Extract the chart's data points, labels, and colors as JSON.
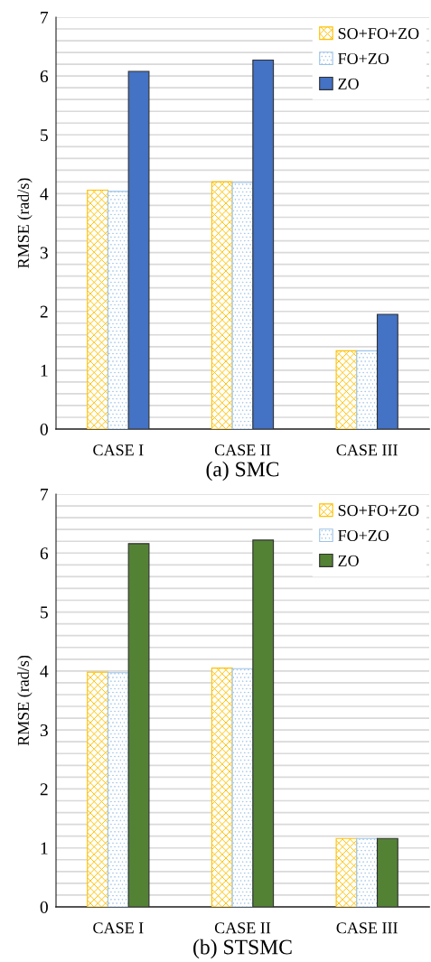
{
  "chart_data": [
    {
      "type": "bar",
      "title": "(a) SMC",
      "ylabel": "RMSE (rad/s)",
      "categories": [
        "CASE I",
        "CASE II",
        "CASE III"
      ],
      "series": [
        {
          "name": "SO+FO+ZO",
          "color": "#ffc000",
          "values": [
            4.06,
            4.2,
            1.33
          ]
        },
        {
          "name": "FO+ZO",
          "color": "#9dc3e6",
          "values": [
            4.04,
            4.19,
            1.33
          ]
        },
        {
          "name": "ZO",
          "color": "#4472c4",
          "values": [
            6.08,
            6.27,
            1.95
          ]
        }
      ],
      "ylim": [
        0,
        7
      ],
      "yticks": [
        0,
        {
          "value": 0.2,
          "label": null
        },
        {
          "value": 0.4,
          "label": null
        },
        {
          "value": 0.6,
          "label": null
        },
        {
          "value": 0.8,
          "label": null
        },
        1,
        {
          "value": 1.2,
          "label": null
        },
        {
          "value": 1.4,
          "label": null
        },
        {
          "value": 1.6,
          "label": null
        },
        {
          "value": 1.8,
          "label": null
        },
        2,
        {
          "value": 2.2,
          "label": null
        },
        {
          "value": 2.4,
          "label": null
        },
        {
          "value": 2.6,
          "label": null
        },
        {
          "value": 2.8,
          "label": null
        },
        3,
        {
          "value": 3.2,
          "label": null
        },
        {
          "value": 3.4,
          "label": null
        },
        {
          "value": 3.6,
          "label": null
        },
        {
          "value": 3.8,
          "label": null
        },
        4,
        {
          "value": 4.2,
          "label": null
        },
        {
          "value": 4.4,
          "label": null
        },
        {
          "value": 4.6,
          "label": null
        },
        {
          "value": 4.8,
          "label": null
        },
        5,
        {
          "value": 5.2,
          "label": null
        },
        {
          "value": 5.4,
          "label": null
        },
        {
          "value": 5.6,
          "label": null
        },
        {
          "value": 5.8,
          "label": null
        },
        6,
        {
          "value": 6.2,
          "label": null
        },
        {
          "value": 6.4,
          "label": null
        },
        {
          "value": 6.6,
          "label": null
        },
        {
          "value": 6.8,
          "label": null
        },
        7
      ],
      "grid": "y",
      "legend": "top right"
    },
    {
      "type": "bar",
      "title": "(b) STSMC",
      "ylabel": "RMSE (rad/s)",
      "categories": [
        "CASE I",
        "CASE II",
        "CASE III"
      ],
      "series": [
        {
          "name": "SO+FO+ZO",
          "color": "#ffc000",
          "values": [
            3.98,
            4.05,
            1.16
          ]
        },
        {
          "name": "FO+ZO",
          "color": "#9dc3e6",
          "values": [
            3.97,
            4.04,
            1.16
          ]
        },
        {
          "name": "ZO",
          "color": "#548235",
          "values": [
            6.16,
            6.22,
            1.16
          ]
        }
      ],
      "ylim": [
        0,
        7
      ],
      "yticks": [
        0,
        {
          "value": 0.2,
          "label": null
        },
        {
          "value": 0.4,
          "label": null
        },
        {
          "value": 0.6,
          "label": null
        },
        {
          "value": 0.8,
          "label": null
        },
        1,
        {
          "value": 1.2,
          "label": null
        },
        {
          "value": 1.4,
          "label": null
        },
        {
          "value": 1.6,
          "label": null
        },
        {
          "value": 1.8,
          "label": null
        },
        2,
        {
          "value": 2.2,
          "label": null
        },
        {
          "value": 2.4,
          "label": null
        },
        {
          "value": 2.6,
          "label": null
        },
        {
          "value": 2.8,
          "label": null
        },
        3,
        {
          "value": 3.2,
          "label": null
        },
        {
          "value": 3.4,
          "label": null
        },
        {
          "value": 3.6,
          "label": null
        },
        {
          "value": 3.8,
          "label": null
        },
        4,
        {
          "value": 4.2,
          "label": null
        },
        {
          "value": 4.4,
          "label": null
        },
        {
          "value": 4.6,
          "label": null
        },
        {
          "value": 4.8,
          "label": null
        },
        5,
        {
          "value": 5.2,
          "label": null
        },
        {
          "value": 5.4,
          "label": null
        },
        {
          "value": 5.6,
          "label": null
        },
        {
          "value": 5.8,
          "label": null
        },
        6,
        {
          "value": 6.2,
          "label": null
        },
        {
          "value": 6.4,
          "label": null
        },
        {
          "value": 6.6,
          "label": null
        },
        {
          "value": 6.8,
          "label": null
        },
        7
      ],
      "grid": "y",
      "legend": "top right"
    }
  ]
}
